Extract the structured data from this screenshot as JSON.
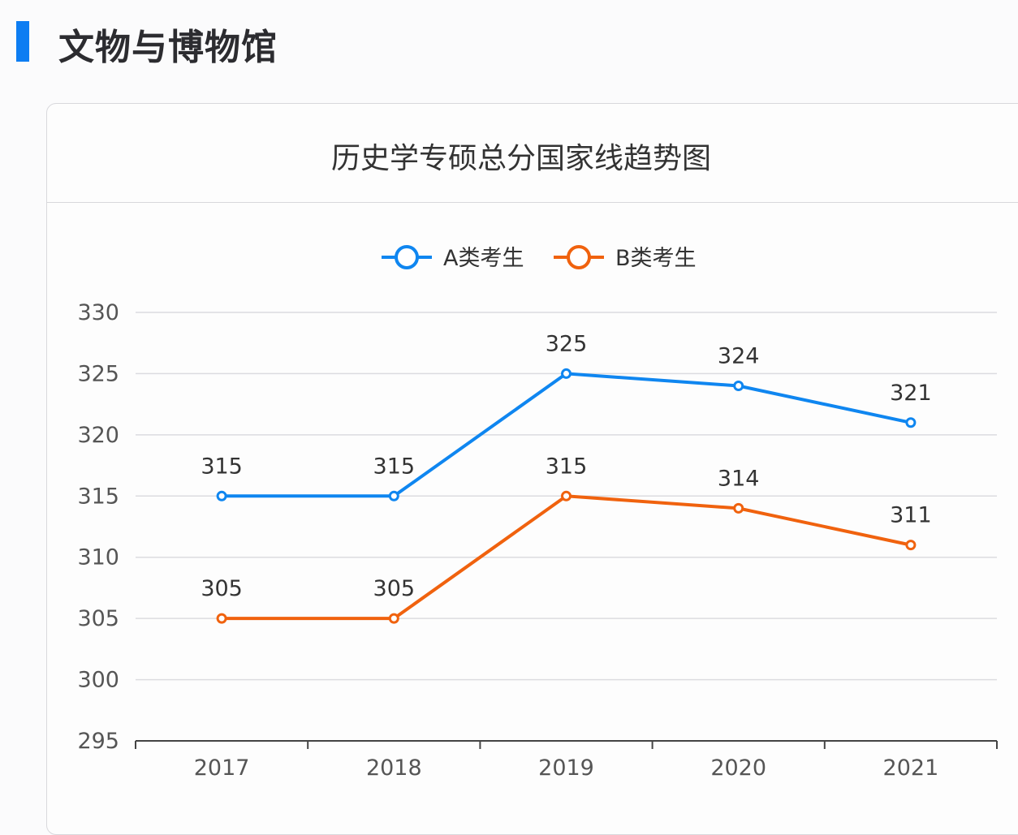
{
  "section": {
    "title": "文物与博物馆",
    "accent": "#0d7df2"
  },
  "chart_data": {
    "type": "line",
    "title": "历史学专硕总分国家线趋势图",
    "categories": [
      "2017",
      "2018",
      "2019",
      "2020",
      "2021"
    ],
    "series": [
      {
        "name": "A类考生",
        "color": "#0f86f0",
        "values": [
          315,
          315,
          325,
          324,
          321
        ]
      },
      {
        "name": "B类考生",
        "color": "#f0620e",
        "values": [
          305,
          305,
          315,
          314,
          311
        ]
      }
    ],
    "ylim": [
      295,
      330
    ],
    "yticks": [
      295,
      300,
      305,
      310,
      315,
      320,
      325,
      330
    ],
    "grid": true,
    "legend": "top-center",
    "data_labels": true
  }
}
